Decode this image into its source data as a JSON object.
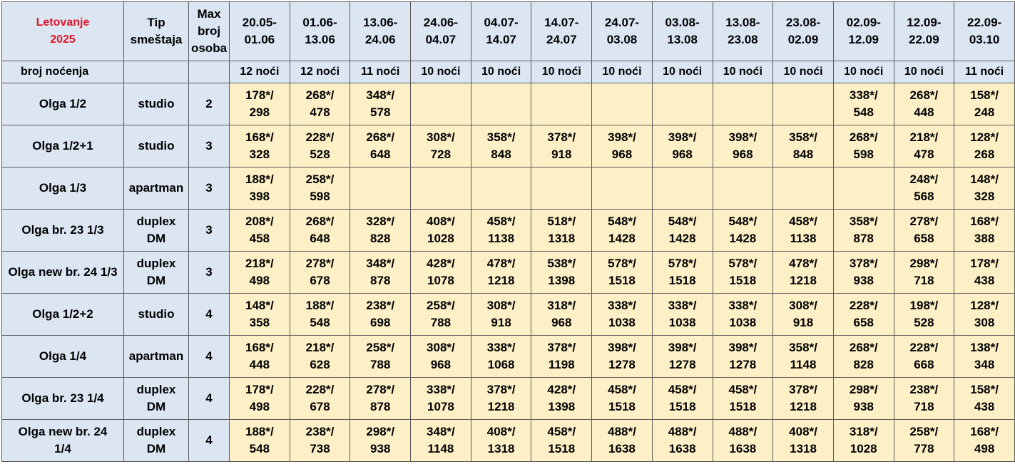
{
  "header": {
    "title_line1": "Letovanje",
    "title_line2": "2025",
    "type_line1": "Tip",
    "type_line2": "smeštaja",
    "max_line1": "Max",
    "max_line2": "broj",
    "max_line3": "osoba",
    "nights_label": "broj noćenja",
    "periods": [
      {
        "from": "20.05-",
        "to": "01.06",
        "nights": "12 noći"
      },
      {
        "from": "01.06-",
        "to": "13.06",
        "nights": "12 noći"
      },
      {
        "from": "13.06-",
        "to": "24.06",
        "nights": "11 noći"
      },
      {
        "from": "24.06-",
        "to": "04.07",
        "nights": "10 noći"
      },
      {
        "from": "04.07-",
        "to": "14.07",
        "nights": "10 noći"
      },
      {
        "from": "14.07-",
        "to": "24.07",
        "nights": "10 noći"
      },
      {
        "from": "24.07-",
        "to": "03.08",
        "nights": "10 noći"
      },
      {
        "from": "03.08-",
        "to": "13.08",
        "nights": "10 noći"
      },
      {
        "from": "13.08-",
        "to": "23.08",
        "nights": "10 noći"
      },
      {
        "from": "23.08-",
        "to": "02.09",
        "nights": "10 noći"
      },
      {
        "from": "02.09-",
        "to": "12.09",
        "nights": "10 noći"
      },
      {
        "from": "12.09-",
        "to": "22.09",
        "nights": "10 noći"
      },
      {
        "from": "22.09-",
        "to": "03.10",
        "nights": "11 noći"
      }
    ]
  },
  "rows": [
    {
      "name": "Olga 1/2",
      "type1": "studio",
      "type2": "",
      "max": "2",
      "prices": [
        [
          "178*/",
          "298"
        ],
        [
          "268*/",
          "478"
        ],
        [
          "348*/",
          "578"
        ],
        [
          "",
          ""
        ],
        [
          "",
          ""
        ],
        [
          "",
          ""
        ],
        [
          "",
          ""
        ],
        [
          "",
          ""
        ],
        [
          "",
          ""
        ],
        [
          "",
          ""
        ],
        [
          "338*/",
          "548"
        ],
        [
          "268*/",
          "448"
        ],
        [
          "158*/",
          "248"
        ]
      ]
    },
    {
      "name": "Olga 1/2+1",
      "type1": "studio",
      "type2": "",
      "max": "3",
      "prices": [
        [
          "168*/",
          "328"
        ],
        [
          "228*/",
          "528"
        ],
        [
          "268*/",
          "648"
        ],
        [
          "308*/",
          "728"
        ],
        [
          "358*/",
          "848"
        ],
        [
          "378*/",
          "918"
        ],
        [
          "398*/",
          "968"
        ],
        [
          "398*/",
          "968"
        ],
        [
          "398*/",
          "968"
        ],
        [
          "358*/",
          "848"
        ],
        [
          "268*/",
          "598"
        ],
        [
          "218*/",
          "478"
        ],
        [
          "128*/",
          "268"
        ]
      ]
    },
    {
      "name": "Olga 1/3",
      "type1": "apartman",
      "type2": "",
      "max": "3",
      "prices": [
        [
          "188*/",
          "398"
        ],
        [
          "258*/",
          "598"
        ],
        [
          "",
          ""
        ],
        [
          "",
          ""
        ],
        [
          "",
          ""
        ],
        [
          "",
          ""
        ],
        [
          "",
          ""
        ],
        [
          "",
          ""
        ],
        [
          "",
          ""
        ],
        [
          "",
          ""
        ],
        [
          "",
          ""
        ],
        [
          "248*/",
          "568"
        ],
        [
          "148*/",
          "328"
        ]
      ]
    },
    {
      "name": "Olga br. 23 1/3",
      "type1": "duplex",
      "type2": "DM",
      "max": "3",
      "prices": [
        [
          "208*/",
          "458"
        ],
        [
          "268*/",
          "648"
        ],
        [
          "328*/",
          "828"
        ],
        [
          "408*/",
          "1028"
        ],
        [
          "458*/",
          "1138"
        ],
        [
          "518*/",
          "1318"
        ],
        [
          "548*/",
          "1428"
        ],
        [
          "548*/",
          "1428"
        ],
        [
          "548*/",
          "1428"
        ],
        [
          "458*/",
          "1138"
        ],
        [
          "358*/",
          "878"
        ],
        [
          "278*/",
          "658"
        ],
        [
          "168*/",
          "388"
        ]
      ]
    },
    {
      "name": "Olga new br. 24 1/3",
      "type1": "duplex",
      "type2": "DM",
      "max": "3",
      "prices": [
        [
          "218*/",
          "498"
        ],
        [
          "278*/",
          "678"
        ],
        [
          "348*/",
          "878"
        ],
        [
          "428*/",
          "1078"
        ],
        [
          "478*/",
          "1218"
        ],
        [
          "538*/",
          "1398"
        ],
        [
          "578*/",
          "1518"
        ],
        [
          "578*/",
          "1518"
        ],
        [
          "578*/",
          "1518"
        ],
        [
          "478*/",
          "1218"
        ],
        [
          "378*/",
          "938"
        ],
        [
          "298*/",
          "718"
        ],
        [
          "178*/",
          "438"
        ]
      ]
    },
    {
      "name": "Olga 1/2+2",
      "type1": "studio",
      "type2": "",
      "max": "4",
      "prices": [
        [
          "148*/",
          "358"
        ],
        [
          "188*/",
          "548"
        ],
        [
          "238*/",
          "698"
        ],
        [
          "258*/",
          "788"
        ],
        [
          "308*/",
          "918"
        ],
        [
          "318*/",
          "968"
        ],
        [
          "338*/",
          "1038"
        ],
        [
          "338*/",
          "1038"
        ],
        [
          "338*/",
          "1038"
        ],
        [
          "308*/",
          "918"
        ],
        [
          "228*/",
          "658"
        ],
        [
          "198*/",
          "528"
        ],
        [
          "128*/",
          "308"
        ]
      ]
    },
    {
      "name": "Olga 1/4",
      "type1": "apartman",
      "type2": "",
      "max": "4",
      "prices": [
        [
          "168*/",
          "448"
        ],
        [
          "218*/",
          "628"
        ],
        [
          "258*/",
          "788"
        ],
        [
          "308*/",
          "968"
        ],
        [
          "338*/",
          "1068"
        ],
        [
          "378*/",
          "1198"
        ],
        [
          "398*/",
          "1278"
        ],
        [
          "398*/",
          "1278"
        ],
        [
          "398*/",
          "1278"
        ],
        [
          "358*/",
          "1148"
        ],
        [
          "268*/",
          "828"
        ],
        [
          "228*/",
          "668"
        ],
        [
          "138*/",
          "348"
        ]
      ]
    },
    {
      "name": "Olga br. 23 1/4",
      "type1": "duplex",
      "type2": "DM",
      "max": "4",
      "prices": [
        [
          "178*/",
          "498"
        ],
        [
          "228*/",
          "678"
        ],
        [
          "278*/",
          "878"
        ],
        [
          "338*/",
          "1078"
        ],
        [
          "378*/",
          "1218"
        ],
        [
          "428*/",
          "1398"
        ],
        [
          "458*/",
          "1518"
        ],
        [
          "458*/",
          "1518"
        ],
        [
          "458*/",
          "1518"
        ],
        [
          "378*/",
          "1218"
        ],
        [
          "298*/",
          "938"
        ],
        [
          "238*/",
          "718"
        ],
        [
          "158*/",
          "438"
        ]
      ]
    },
    {
      "name": "Olga new br. 24",
      "name2": "1/4",
      "type1": "duplex",
      "type2": "DM",
      "max": "4",
      "prices": [
        [
          "188*/",
          "548"
        ],
        [
          "238*/",
          "738"
        ],
        [
          "298*/",
          "938"
        ],
        [
          "348*/",
          "1148"
        ],
        [
          "408*/",
          "1318"
        ],
        [
          "458*/",
          "1518"
        ],
        [
          "488*/",
          "1638"
        ],
        [
          "488*/",
          "1638"
        ],
        [
          "488*/",
          "1638"
        ],
        [
          "408*/",
          "1318"
        ],
        [
          "318*/",
          "1028"
        ],
        [
          "258*/",
          "778"
        ],
        [
          "168*/",
          "498"
        ]
      ]
    }
  ],
  "colors": {
    "header_bg": "#dbe6f2",
    "price_bg": "#fdf0c6",
    "title_red": "#e0162b"
  }
}
